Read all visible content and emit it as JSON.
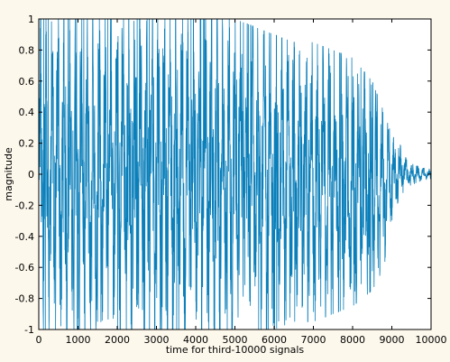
{
  "chart_data": {
    "type": "line",
    "title": "",
    "xlabel": "time for third-10000 signals",
    "ylabel": "magnitude",
    "xlim": [
      0,
      10000
    ],
    "ylim": [
      -1,
      1
    ],
    "x_ticks": [
      "0",
      "1000",
      "2000",
      "3000",
      "4000",
      "5000",
      "6000",
      "7000",
      "8000",
      "9000",
      "10000"
    ],
    "y_ticks": [
      "1",
      "0.8",
      "0.6",
      "0.4",
      "0.2",
      "0",
      "-0.2",
      "-0.4",
      "-0.6",
      "-0.8",
      "-1"
    ],
    "grid": false,
    "line_color": "#0a7fba",
    "background_color": "#fdf8ec",
    "plot_background_color": "#ffffff",
    "series": [
      {
        "envelope": {
          "x": [
            0,
            500,
            1000,
            1500,
            2000,
            2500,
            3000,
            3500,
            4000,
            4500,
            5000,
            5500,
            6000,
            6500,
            7000,
            7500,
            8000,
            8500,
            8800,
            9000,
            9200,
            9400,
            9600,
            9800,
            10000
          ],
          "upper": [
            1,
            1,
            1,
            1,
            1,
            1,
            1,
            1,
            1,
            1,
            1,
            0.95,
            0.9,
            0.85,
            0.85,
            0.8,
            0.75,
            0.6,
            0.4,
            0.25,
            0.2,
            0.08,
            0.06,
            0.04,
            0.03
          ],
          "lower": [
            -1,
            -1,
            -1,
            -1,
            -1,
            -1,
            -1,
            -1,
            -1,
            -1,
            -1,
            -1,
            -1,
            -0.95,
            -0.95,
            -0.9,
            -0.85,
            -0.75,
            -0.6,
            -0.3,
            -0.15,
            -0.08,
            -0.06,
            -0.04,
            -0.03
          ]
        },
        "num_samples": 10000
      }
    ]
  }
}
